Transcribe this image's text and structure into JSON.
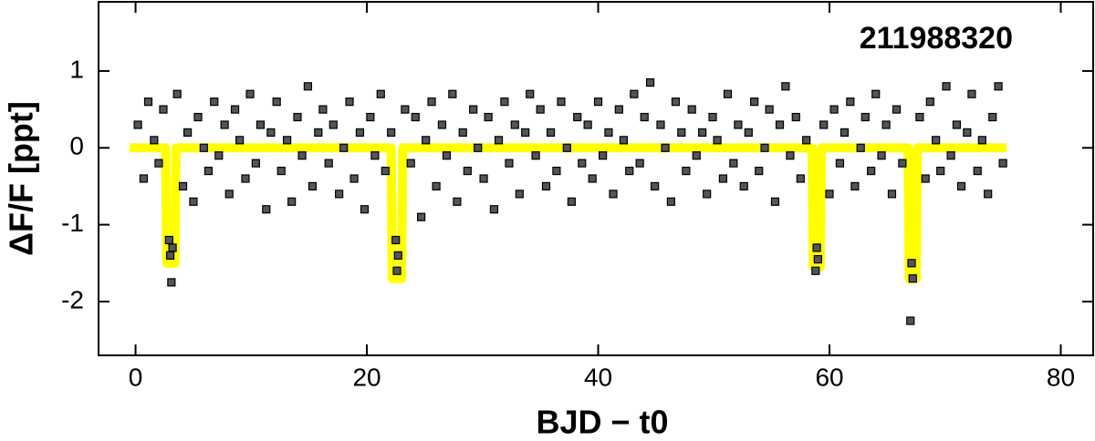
{
  "chart_data": {
    "type": "scatter",
    "xlabel": "BJD − t0",
    "ylabel": "ΔF/F [ppt]",
    "annotation": {
      "text": "211988320",
      "color": "#2a8ff0"
    },
    "xlim": [
      -3.2,
      82.8
    ],
    "ylim": [
      -2.7,
      1.9
    ],
    "xticks": [
      0,
      20,
      40,
      60,
      80
    ],
    "yticks": [
      -2,
      -1,
      0,
      1
    ],
    "grid": false,
    "series": [
      {
        "type": "scatter",
        "color": "#555555",
        "x": [
          0.2,
          0.7,
          1.1,
          1.6,
          2.0,
          2.4,
          2.9,
          3.0,
          3.1,
          3.2,
          3.6,
          4.1,
          4.5,
          5.0,
          5.4,
          5.9,
          6.3,
          6.8,
          7.2,
          7.7,
          8.1,
          8.6,
          9.0,
          9.5,
          9.9,
          10.4,
          10.8,
          11.3,
          11.7,
          12.2,
          12.6,
          13.1,
          13.5,
          14.0,
          14.4,
          14.9,
          15.3,
          15.8,
          16.2,
          16.7,
          17.1,
          17.6,
          18.0,
          18.5,
          18.9,
          19.4,
          19.8,
          20.3,
          20.7,
          21.2,
          21.6,
          22.1,
          22.5,
          22.6,
          22.7,
          23.3,
          23.8,
          24.2,
          24.7,
          25.1,
          25.6,
          26.0,
          26.5,
          26.9,
          27.4,
          27.8,
          28.3,
          28.7,
          29.2,
          29.6,
          30.1,
          30.5,
          31.0,
          31.4,
          31.9,
          32.3,
          32.8,
          33.2,
          33.7,
          34.1,
          34.6,
          35.0,
          35.5,
          35.9,
          36.4,
          36.8,
          37.3,
          37.7,
          38.2,
          38.6,
          39.1,
          39.5,
          40.0,
          40.4,
          40.9,
          41.3,
          41.8,
          42.2,
          42.7,
          43.1,
          43.6,
          44.0,
          44.5,
          44.9,
          45.4,
          45.8,
          46.3,
          46.7,
          47.2,
          47.6,
          48.1,
          48.5,
          49.0,
          49.4,
          49.9,
          50.3,
          50.8,
          51.2,
          51.7,
          52.1,
          52.6,
          53.0,
          53.5,
          53.9,
          54.4,
          54.8,
          55.3,
          55.7,
          56.2,
          56.6,
          57.1,
          57.5,
          58.0,
          58.8,
          58.9,
          59.0,
          59.5,
          60.0,
          60.4,
          60.9,
          61.3,
          61.8,
          62.2,
          62.7,
          63.1,
          63.6,
          64.0,
          64.5,
          64.9,
          65.4,
          65.8,
          66.3,
          67.0,
          67.1,
          67.2,
          67.8,
          68.3,
          68.7,
          69.2,
          69.6,
          70.1,
          70.5,
          71.0,
          71.4,
          71.9,
          72.3,
          72.8,
          73.2,
          73.7,
          74.1,
          74.6,
          75.0
        ],
        "values": [
          0.3,
          -0.4,
          0.6,
          0.1,
          -0.2,
          0.5,
          -1.2,
          -1.4,
          -1.75,
          -1.3,
          0.7,
          -0.5,
          0.2,
          -0.7,
          0.4,
          0.0,
          -0.3,
          0.6,
          -0.1,
          0.3,
          -0.6,
          0.5,
          0.1,
          -0.4,
          0.7,
          -0.2,
          0.3,
          -0.8,
          0.2,
          0.6,
          -0.3,
          0.1,
          -0.7,
          0.4,
          -0.1,
          0.8,
          -0.5,
          0.2,
          0.5,
          -0.2,
          0.3,
          -0.6,
          0.0,
          0.6,
          -0.4,
          0.2,
          -0.8,
          0.4,
          -0.1,
          0.7,
          -0.3,
          0.2,
          -1.2,
          -1.6,
          -1.4,
          0.5,
          -0.2,
          0.4,
          -0.9,
          0.1,
          0.6,
          -0.5,
          0.3,
          -0.1,
          0.7,
          -0.7,
          0.2,
          -0.3,
          0.5,
          0.0,
          -0.4,
          0.4,
          -0.8,
          0.1,
          0.6,
          -0.2,
          0.3,
          -0.6,
          0.2,
          0.7,
          -0.1,
          0.5,
          -0.5,
          0.2,
          -0.3,
          0.6,
          0.0,
          -0.7,
          0.4,
          -0.2,
          0.3,
          -0.4,
          0.6,
          -0.1,
          0.2,
          -0.6,
          0.5,
          0.1,
          -0.3,
          0.7,
          -0.2,
          0.4,
          0.85,
          -0.5,
          0.3,
          0.0,
          -0.7,
          0.6,
          0.2,
          -0.3,
          0.5,
          -0.1,
          0.2,
          -0.6,
          0.4,
          0.1,
          -0.4,
          0.7,
          -0.2,
          0.3,
          -0.5,
          0.2,
          0.6,
          -0.3,
          0.0,
          0.5,
          -0.7,
          0.3,
          0.8,
          -0.1,
          0.4,
          -0.4,
          0.1,
          -1.6,
          -1.3,
          -1.45,
          0.3,
          -0.6,
          0.5,
          -0.2,
          0.2,
          0.6,
          -0.5,
          0.0,
          0.4,
          -0.3,
          0.7,
          -0.1,
          0.3,
          -0.6,
          0.5,
          -0.2,
          -2.25,
          -1.5,
          -1.7,
          0.4,
          -0.4,
          0.6,
          0.1,
          -0.3,
          0.8,
          -0.1,
          0.3,
          -0.5,
          0.2,
          0.7,
          -0.3,
          0.1,
          -0.6,
          0.4,
          0.8,
          -0.2
        ]
      },
      {
        "type": "line",
        "color": "#ffff00",
        "x": [
          -0.5,
          2.6,
          2.7,
          3.4,
          3.5,
          22.1,
          22.2,
          23.0,
          23.1,
          58.5,
          58.6,
          59.2,
          59.3,
          66.8,
          66.9,
          67.5,
          67.6,
          75.3
        ],
        "values": [
          0,
          0,
          -1.5,
          -1.5,
          0,
          0,
          -1.7,
          -1.7,
          0,
          0,
          -1.55,
          -1.55,
          0,
          0,
          -1.7,
          -1.7,
          0,
          0
        ]
      }
    ]
  }
}
